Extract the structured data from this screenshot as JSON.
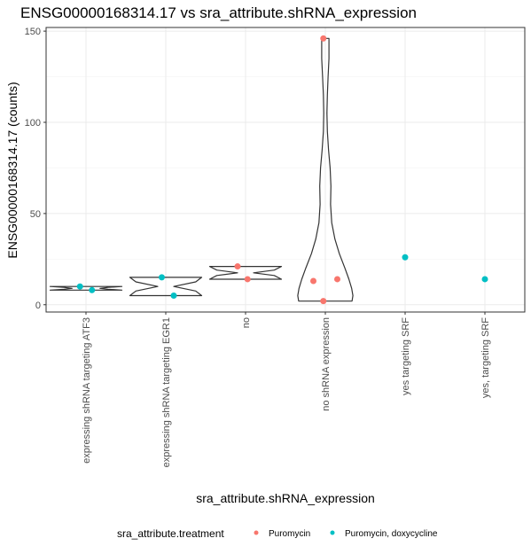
{
  "chart_data": {
    "type": "violin",
    "title": "ENSG00000168314.17 vs sra_attribute.shRNA_expression",
    "xlabel": "sra_attribute.shRNA_expression",
    "ylabel": "ENSG00000168314.17 (counts)",
    "ylim": [
      -4,
      152
    ],
    "yticks": [
      0,
      50,
      100,
      150
    ],
    "grid": true,
    "categories": [
      "expressing shRNA targeting ATF3",
      "expressing shRNA targeting EGR1",
      "no",
      "no shRNA expression",
      "yes targeting SRF",
      "yes, targeting SRF"
    ],
    "legend": {
      "title": "sra_attribute.treatment",
      "position": "bottom",
      "entries": [
        {
          "label": "Puromycin",
          "color": "#F8766D"
        },
        {
          "label": "Puromycin, doxycycline",
          "color": "#00BFC4"
        }
      ]
    },
    "points": [
      {
        "category": "expressing shRNA targeting ATF3",
        "jitter": -0.15,
        "y": 10,
        "group": "Puromycin, doxycycline"
      },
      {
        "category": "expressing shRNA targeting ATF3",
        "jitter": 0.15,
        "y": 8,
        "group": "Puromycin, doxycycline"
      },
      {
        "category": "expressing shRNA targeting EGR1",
        "jitter": -0.1,
        "y": 15,
        "group": "Puromycin, doxycycline"
      },
      {
        "category": "expressing shRNA targeting EGR1",
        "jitter": 0.2,
        "y": 5,
        "group": "Puromycin, doxycycline"
      },
      {
        "category": "no",
        "jitter": -0.2,
        "y": 21,
        "group": "Puromycin"
      },
      {
        "category": "no",
        "jitter": 0.05,
        "y": 14,
        "group": "Puromycin"
      },
      {
        "category": "no shRNA expression",
        "jitter": -0.05,
        "y": 146,
        "group": "Puromycin"
      },
      {
        "category": "no shRNA expression",
        "jitter": -0.3,
        "y": 13,
        "group": "Puromycin"
      },
      {
        "category": "no shRNA expression",
        "jitter": 0.3,
        "y": 14,
        "group": "Puromycin"
      },
      {
        "category": "no shRNA expression",
        "jitter": -0.05,
        "y": 2,
        "group": "Puromycin"
      },
      {
        "category": "yes targeting SRF",
        "jitter": 0.0,
        "y": 26,
        "group": "Puromycin, doxycycline"
      },
      {
        "category": "yes, targeting SRF",
        "jitter": 0.0,
        "y": 14,
        "group": "Puromycin, doxycycline"
      }
    ],
    "violins": [
      {
        "category": "expressing shRNA targeting ATF3",
        "profile": [
          [
            8,
            0.9
          ],
          [
            8.5,
            0.55
          ],
          [
            9,
            0.35
          ],
          [
            9.5,
            0.55
          ],
          [
            10,
            0.9
          ]
        ]
      },
      {
        "category": "expressing shRNA targeting EGR1",
        "profile": [
          [
            5,
            0.9
          ],
          [
            7.5,
            0.75
          ],
          [
            10,
            0.2
          ],
          [
            12.5,
            0.75
          ],
          [
            15,
            0.9
          ]
        ]
      },
      {
        "category": "no",
        "profile": [
          [
            14,
            0.9
          ],
          [
            16,
            0.72
          ],
          [
            17.5,
            0.2
          ],
          [
            19,
            0.72
          ],
          [
            21,
            0.9
          ]
        ]
      },
      {
        "category": "no shRNA expression",
        "profile": [
          [
            2,
            0.67
          ],
          [
            5,
            0.69
          ],
          [
            9,
            0.66
          ],
          [
            14,
            0.59
          ],
          [
            20,
            0.49
          ],
          [
            28,
            0.35
          ],
          [
            36,
            0.24
          ],
          [
            45,
            0.16
          ],
          [
            55,
            0.13
          ],
          [
            65,
            0.14
          ],
          [
            75,
            0.12
          ],
          [
            85,
            0.08
          ],
          [
            95,
            0.05
          ],
          [
            105,
            0.04
          ],
          [
            115,
            0.05
          ],
          [
            125,
            0.07
          ],
          [
            135,
            0.09
          ],
          [
            142,
            0.09
          ],
          [
            146,
            0.09
          ]
        ]
      }
    ]
  }
}
